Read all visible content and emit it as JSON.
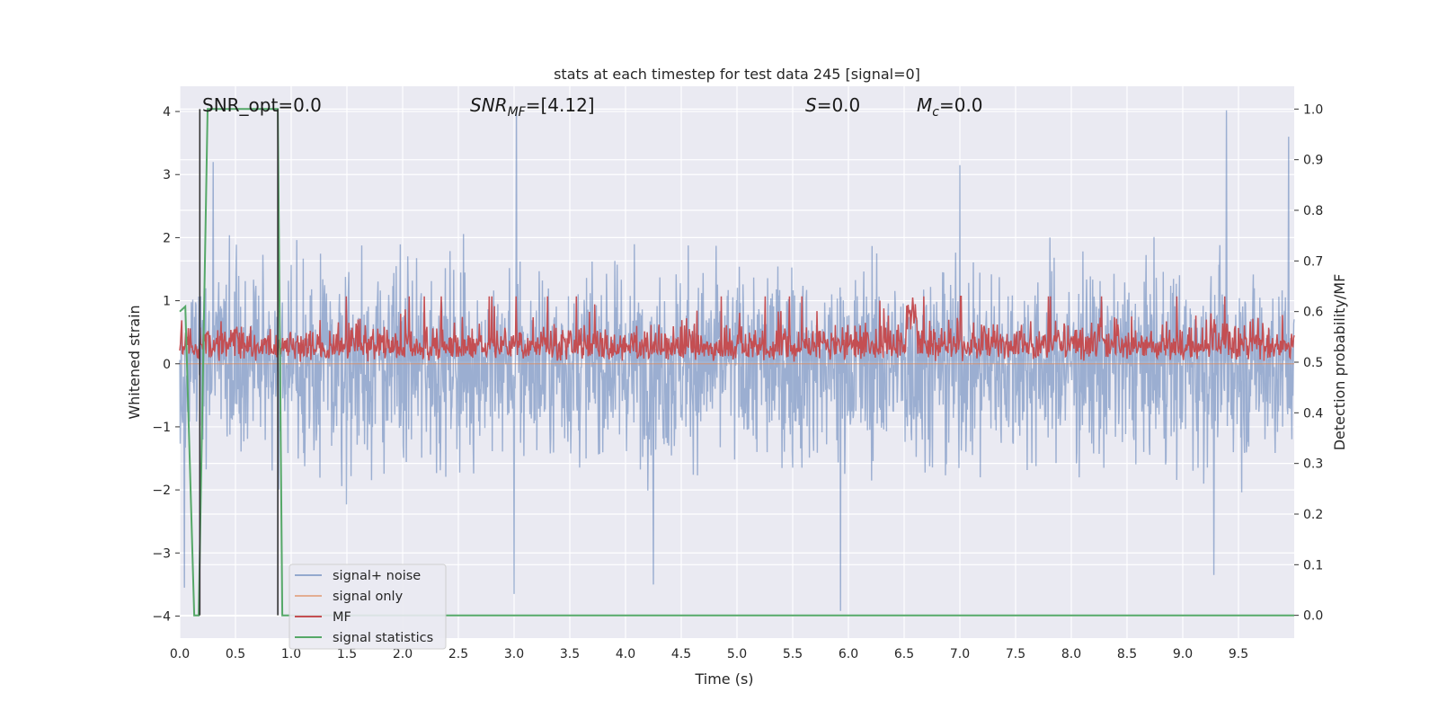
{
  "chart_data": {
    "type": "line",
    "title": "stats at each timestep for test data 245 [signal=0]",
    "xlabel": "Time (s)",
    "ylabel_left": "Whitened strain",
    "ylabel_right": "Detection probability/MF",
    "xlim": [
      0.0,
      10.0
    ],
    "ylim_left": [
      -4.35,
      4.4
    ],
    "ylim_right": [
      -0.045,
      1.045
    ],
    "x_ticks": [
      "0.0",
      "0.5",
      "1.0",
      "1.5",
      "2.0",
      "2.5",
      "3.0",
      "3.5",
      "4.0",
      "4.5",
      "5.0",
      "5.5",
      "6.0",
      "6.5",
      "7.0",
      "7.5",
      "8.0",
      "8.5",
      "9.0",
      "9.5"
    ],
    "x_tick_values": [
      0.0,
      0.5,
      1.0,
      1.5,
      2.0,
      2.5,
      3.0,
      3.5,
      4.0,
      4.5,
      5.0,
      5.5,
      6.0,
      6.5,
      7.0,
      7.5,
      8.0,
      8.5,
      9.0,
      9.5
    ],
    "y_ticks_left": [
      "4",
      "3",
      "2",
      "1",
      "0",
      "−1",
      "−2",
      "−3",
      "−4"
    ],
    "y_tick_values_left": [
      4,
      3,
      2,
      1,
      0,
      -1,
      -2,
      -3,
      -4
    ],
    "y_ticks_right": [
      "1.0",
      "0.9",
      "0.8",
      "0.7",
      "0.6",
      "0.5",
      "0.4",
      "0.3",
      "0.2",
      "0.1",
      "0.0"
    ],
    "y_tick_values_right": [
      1.0,
      0.9,
      0.8,
      0.7,
      0.6,
      0.5,
      0.4,
      0.3,
      0.2,
      0.1,
      0.0
    ],
    "grid": true,
    "legend_position": "lower-left",
    "annotations": {
      "snr_opt": "SNR_opt=0.0",
      "snr_mf_a": "SNR",
      "snr_mf_b": "MF",
      "snr_mf_c": "=[4.12]",
      "s_a": "S",
      "s_b": "=0.0",
      "mc_a": "M",
      "mc_b": "c",
      "mc_c": "=0.0"
    },
    "series": [
      {
        "name": "signal+ noise",
        "axis": "left",
        "color": "#4c72b0",
        "description_range": [
          -3.9,
          4.05
        ],
        "typical_abs": 1.1,
        "peaks": [
          {
            "x": 3.02,
            "y": 4.05
          },
          {
            "x": 9.39,
            "y": 4.02
          },
          {
            "x": 9.95,
            "y": 3.6
          },
          {
            "x": 5.93,
            "y": -3.92
          },
          {
            "x": 3.0,
            "y": -3.65
          },
          {
            "x": 0.04,
            "y": -3.55
          },
          {
            "x": 4.25,
            "y": -3.5
          },
          {
            "x": 9.28,
            "y": -3.35
          },
          {
            "x": 0.3,
            "y": 3.2
          },
          {
            "x": 7.0,
            "y": 3.15
          }
        ]
      },
      {
        "name": "signal only",
        "axis": "left",
        "color": "#dd8452",
        "constant": 0.0
      },
      {
        "name": "MF",
        "axis": "right",
        "color": "#c44e52",
        "baseline": 0.5,
        "typical_peak": 0.62,
        "max": 0.63
      },
      {
        "name": "signal statistics",
        "axis": "right",
        "color": "#55a868",
        "x": [
          0.0,
          0.05,
          0.13,
          0.17,
          0.25,
          0.88,
          0.92,
          10.0
        ],
        "y": [
          0.6,
          0.61,
          0.0,
          0.0,
          1.0,
          1.0,
          0.0,
          0.0
        ]
      }
    ],
    "vertical_lines": [
      {
        "x": 0.18,
        "color": "#333333"
      },
      {
        "x": 0.88,
        "color": "#333333"
      }
    ]
  },
  "legend": {
    "items": [
      "signal+ noise",
      "signal only",
      "MF",
      "signal statistics"
    ]
  }
}
